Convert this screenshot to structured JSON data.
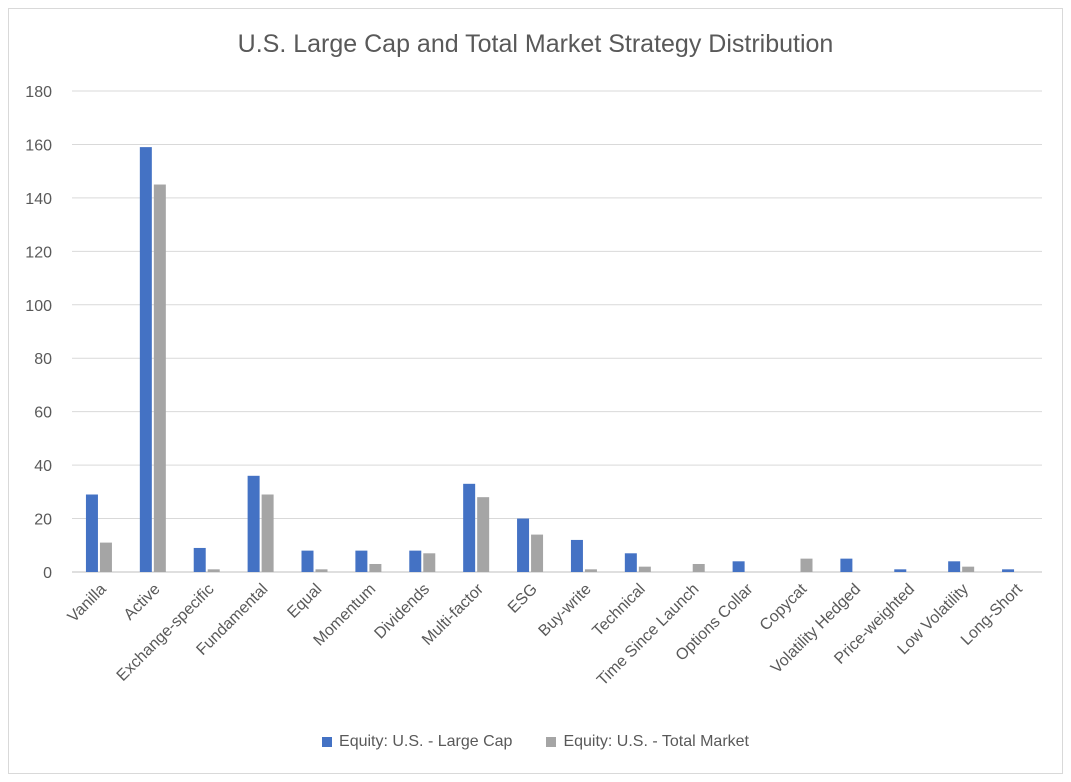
{
  "chart_data": {
    "type": "bar",
    "title": "U.S. Large Cap and Total Market Strategy Distribution",
    "xlabel": "",
    "ylabel": "",
    "ylim": [
      0,
      180
    ],
    "yticks": [
      0,
      20,
      40,
      60,
      80,
      100,
      120,
      140,
      160,
      180
    ],
    "grid": true,
    "legend_position": "bottom",
    "categories": [
      "Vanilla",
      "Active",
      "Exchange-specific",
      "Fundamental",
      "Equal",
      "Momentum",
      "Dividends",
      "Multi-factor",
      "ESG",
      "Buy-write",
      "Technical",
      "Time Since Launch",
      "Options Collar",
      "Copycat",
      "Volatility Hedged",
      "Price-weighted",
      "Low Volatility",
      "Long-Short"
    ],
    "series": [
      {
        "name": "Equity: U.S. - Large Cap",
        "color": "#4472c4",
        "values": [
          29,
          159,
          9,
          36,
          8,
          8,
          8,
          33,
          20,
          12,
          7,
          0,
          4,
          0,
          5,
          1,
          4,
          1
        ]
      },
      {
        "name": "Equity: U.S. - Total Market",
        "color": "#a5a5a5",
        "values": [
          11,
          145,
          1,
          29,
          1,
          3,
          7,
          28,
          14,
          1,
          2,
          3,
          0,
          5,
          0,
          0,
          2,
          0
        ]
      }
    ]
  }
}
